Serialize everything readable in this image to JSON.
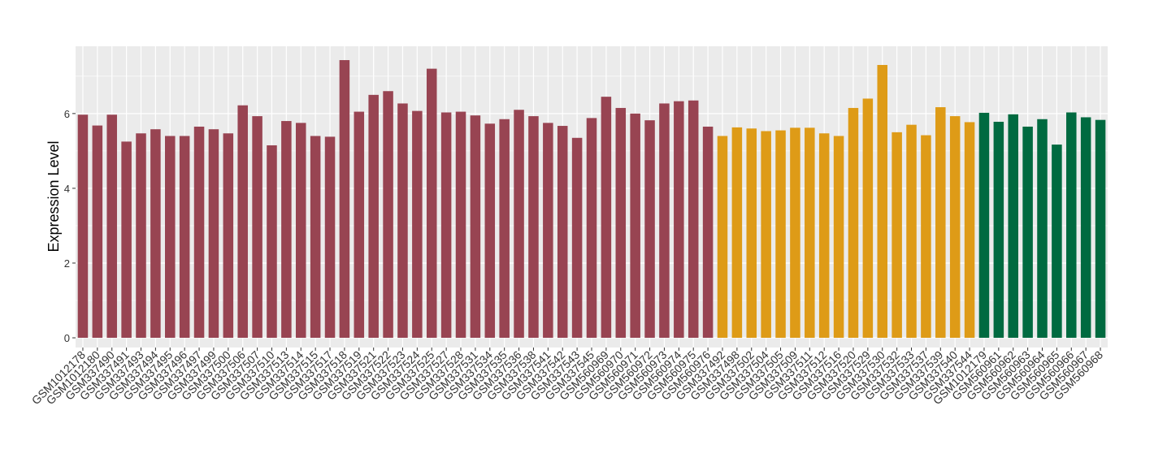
{
  "chart_data": {
    "type": "bar",
    "y_label": "Expression Level",
    "categories": [
      "GSM1012178",
      "GSM1012180",
      "GSM337490",
      "GSM337491",
      "GSM337493",
      "GSM337494",
      "GSM337495",
      "GSM337496",
      "GSM337497",
      "GSM337499",
      "GSM337500",
      "GSM337506",
      "GSM337507",
      "GSM337510",
      "GSM337513",
      "GSM337514",
      "GSM337515",
      "GSM337517",
      "GSM337518",
      "GSM337519",
      "GSM337521",
      "GSM337522",
      "GSM337523",
      "GSM337524",
      "GSM337525",
      "GSM337527",
      "GSM337528",
      "GSM337531",
      "GSM337534",
      "GSM337535",
      "GSM337536",
      "GSM337538",
      "GSM337541",
      "GSM337542",
      "GSM337543",
      "GSM337545",
      "GSM560969",
      "GSM560970",
      "GSM560971",
      "GSM560972",
      "GSM560973",
      "GSM560974",
      "GSM560975",
      "GSM560976",
      "GSM337492",
      "GSM337498",
      "GSM337502",
      "GSM337504",
      "GSM337505",
      "GSM337509",
      "GSM337511",
      "GSM337512",
      "GSM337516",
      "GSM337520",
      "GSM337529",
      "GSM337530",
      "GSM337532",
      "GSM337533",
      "GSM337537",
      "GSM337539",
      "GSM337540",
      "GSM337544",
      "GSM1012179",
      "GSM560961",
      "GSM560962",
      "GSM560963",
      "GSM560964",
      "GSM560965",
      "GSM560966",
      "GSM560967",
      "GSM560968"
    ],
    "values": [
      5.97,
      5.68,
      5.97,
      5.25,
      5.47,
      5.58,
      5.4,
      5.4,
      5.65,
      5.58,
      5.47,
      6.22,
      5.93,
      5.15,
      5.8,
      5.75,
      5.4,
      5.38,
      7.43,
      6.05,
      6.5,
      6.6,
      6.27,
      6.07,
      7.2,
      6.03,
      6.05,
      5.95,
      5.73,
      5.85,
      6.1,
      5.93,
      5.75,
      5.67,
      5.35,
      5.88,
      6.45,
      6.15,
      6.0,
      5.82,
      6.27,
      6.33,
      6.35,
      5.65,
      5.4,
      5.63,
      5.6,
      5.53,
      5.55,
      5.62,
      5.62,
      5.47,
      5.4,
      6.15,
      6.4,
      7.3,
      5.5,
      5.7,
      5.42,
      6.17,
      5.93,
      5.77,
      6.02,
      5.78,
      5.98,
      5.65,
      5.85,
      5.17,
      6.03,
      5.9,
      5.83
    ],
    "colors": [
      "#984452",
      "#984452",
      "#984452",
      "#984452",
      "#984452",
      "#984452",
      "#984452",
      "#984452",
      "#984452",
      "#984452",
      "#984452",
      "#984452",
      "#984452",
      "#984452",
      "#984452",
      "#984452",
      "#984452",
      "#984452",
      "#984452",
      "#984452",
      "#984452",
      "#984452",
      "#984452",
      "#984452",
      "#984452",
      "#984452",
      "#984452",
      "#984452",
      "#984452",
      "#984452",
      "#984452",
      "#984452",
      "#984452",
      "#984452",
      "#984452",
      "#984452",
      "#984452",
      "#984452",
      "#984452",
      "#984452",
      "#984452",
      "#984452",
      "#984452",
      "#984452",
      "#de9b17",
      "#de9b17",
      "#de9b17",
      "#de9b17",
      "#de9b17",
      "#de9b17",
      "#de9b17",
      "#de9b17",
      "#de9b17",
      "#de9b17",
      "#de9b17",
      "#de9b17",
      "#de9b17",
      "#de9b17",
      "#de9b17",
      "#de9b17",
      "#de9b17",
      "#de9b17",
      "#006a40",
      "#006a40",
      "#006a40",
      "#006a40",
      "#006a40",
      "#006a40",
      "#006a40",
      "#006a40",
      "#006a40"
    ],
    "ylim": [
      -0.26,
      7.8
    ],
    "yticks": [
      0,
      2,
      4,
      6
    ],
    "grid": true
  }
}
